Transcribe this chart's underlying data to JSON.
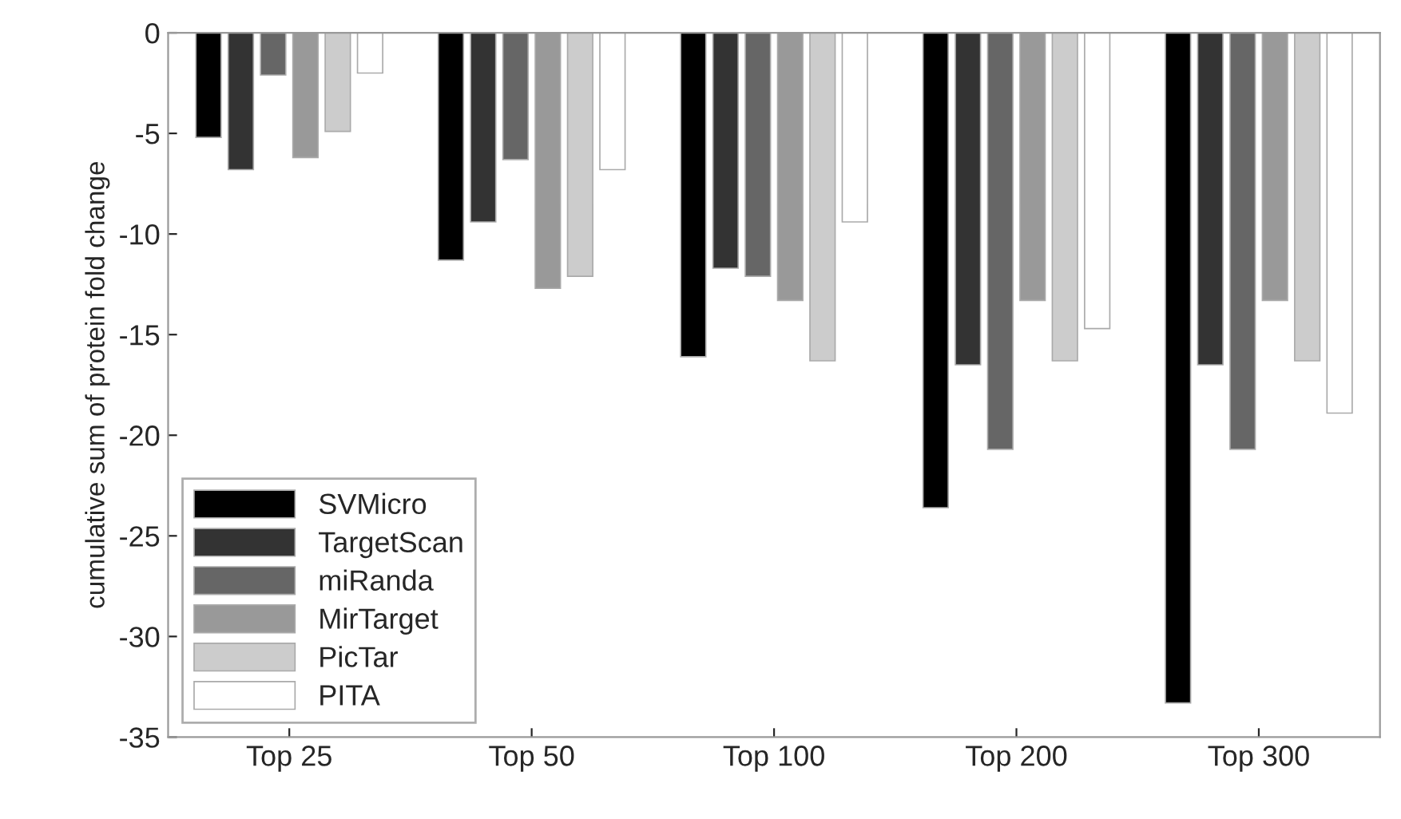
{
  "chart_data": {
    "type": "bar",
    "ylabel": "cumulative sum of protein fold change",
    "categories": [
      "Top 25",
      "Top 50",
      "Top 100",
      "Top 200",
      "Top 300"
    ],
    "series": [
      {
        "name": "SVMicro",
        "color": "#000000",
        "values": [
          -5.2,
          -11.3,
          -16.1,
          -23.6,
          -33.3
        ]
      },
      {
        "name": "TargetScan",
        "color": "#333333",
        "values": [
          -6.8,
          -9.4,
          -11.7,
          -16.5,
          -16.5
        ]
      },
      {
        "name": "miRanda",
        "color": "#666666",
        "values": [
          -2.1,
          -6.3,
          -12.1,
          -20.7,
          -20.7
        ]
      },
      {
        "name": "MirTarget",
        "color": "#999999",
        "values": [
          -6.2,
          -12.7,
          -13.3,
          -13.3,
          -13.3
        ]
      },
      {
        "name": "PicTar",
        "color": "#cccccc",
        "values": [
          -4.9,
          -12.1,
          -16.3,
          -16.3,
          -16.3
        ]
      },
      {
        "name": "PITA",
        "color": "#ffffff",
        "values": [
          -2.0,
          -6.8,
          -9.4,
          -14.7,
          -18.9
        ]
      }
    ],
    "ylim": [
      -35,
      0
    ],
    "yticks": [
      -35,
      -30,
      -25,
      -20,
      -15,
      -10,
      -5,
      0
    ],
    "grid": false,
    "legend": "bottom left"
  }
}
